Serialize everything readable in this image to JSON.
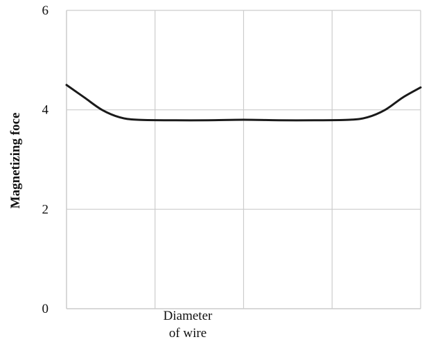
{
  "chart_data": {
    "type": "line",
    "title": "",
    "xlabel": "Diameter of wire",
    "xlabel_lines": [
      "Diameter",
      "of wire"
    ],
    "ylabel": "Magnetizing foce",
    "ylim": [
      0,
      6
    ],
    "yticks": [
      "0",
      "2",
      "4",
      "6"
    ],
    "ytick_values": [
      0,
      2,
      4,
      6
    ],
    "xlim": [
      0,
      1
    ],
    "grid": "horizontal",
    "vertical_gridlines": 4,
    "line_color": "#1a1a1a",
    "grid_color": "#cccccc",
    "series": [
      {
        "x": [
          0.0,
          0.05,
          0.1,
          0.15,
          0.2,
          0.3,
          0.4,
          0.5,
          0.6,
          0.7,
          0.8,
          0.85,
          0.9,
          0.95,
          1.0
        ],
        "values": [
          4.5,
          4.25,
          4.0,
          3.85,
          3.8,
          3.79,
          3.79,
          3.8,
          3.79,
          3.79,
          3.8,
          3.85,
          4.0,
          4.25,
          4.45
        ]
      }
    ]
  }
}
